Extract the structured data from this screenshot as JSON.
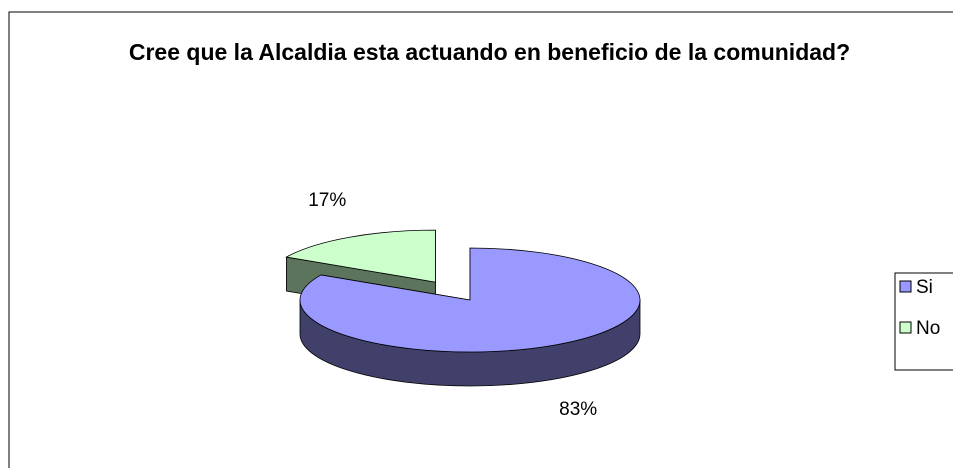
{
  "chart_data": {
    "type": "pie3d",
    "title": "Cree que la Alcaldia esta actuando en beneficio de la comunidad?",
    "categories": [
      "Si",
      "No"
    ],
    "values": [
      83,
      17
    ],
    "value_labels": [
      "83%",
      "17%"
    ],
    "colors": [
      "#9999ff",
      "#ccffcc"
    ],
    "exploded": [
      false,
      true
    ],
    "legend": "right"
  }
}
